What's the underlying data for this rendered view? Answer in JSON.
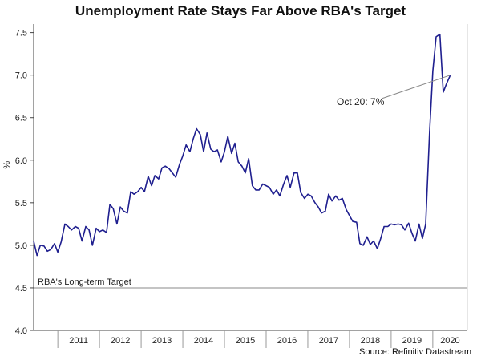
{
  "chart_data": {
    "type": "line",
    "title": "Unemployment Rate Stays Far Above RBA's Target",
    "ylabel": "%",
    "xlabel": "",
    "ylim": [
      4.0,
      7.6
    ],
    "xlim": [
      2010.42,
      2020.83
    ],
    "yticks": [
      "4.0",
      "4.5",
      "5.0",
      "5.5",
      "6.0",
      "6.5",
      "7.0",
      "7.5"
    ],
    "xtick_labels": [
      "2011",
      "2012",
      "2013",
      "2014",
      "2015",
      "2016",
      "2017",
      "2018",
      "2019",
      "2020"
    ],
    "grid": false,
    "source": "Source: Refinitiv Datastream",
    "reference_line": {
      "label": "RBA's Long-term Target",
      "value": 4.5
    },
    "annotation": {
      "text": "Oct 20: 7%",
      "x": 2020.75,
      "y": 7.0
    },
    "series": [
      {
        "color": "#1f1f8f",
        "points": [
          [
            2010.42,
            5.05
          ],
          [
            2010.5,
            4.88
          ],
          [
            2010.58,
            5.0
          ],
          [
            2010.67,
            4.99
          ],
          [
            2010.75,
            4.93
          ],
          [
            2010.83,
            4.95
          ],
          [
            2010.92,
            5.02
          ],
          [
            2011.0,
            4.92
          ],
          [
            2011.08,
            5.04
          ],
          [
            2011.17,
            5.25
          ],
          [
            2011.25,
            5.22
          ],
          [
            2011.33,
            5.18
          ],
          [
            2011.42,
            5.22
          ],
          [
            2011.5,
            5.2
          ],
          [
            2011.58,
            5.05
          ],
          [
            2011.67,
            5.22
          ],
          [
            2011.75,
            5.18
          ],
          [
            2011.83,
            5.0
          ],
          [
            2011.92,
            5.2
          ],
          [
            2012.0,
            5.16
          ],
          [
            2012.08,
            5.18
          ],
          [
            2012.17,
            5.15
          ],
          [
            2012.25,
            5.48
          ],
          [
            2012.33,
            5.43
          ],
          [
            2012.42,
            5.25
          ],
          [
            2012.5,
            5.45
          ],
          [
            2012.58,
            5.4
          ],
          [
            2012.67,
            5.38
          ],
          [
            2012.75,
            5.63
          ],
          [
            2012.83,
            5.6
          ],
          [
            2012.92,
            5.63
          ],
          [
            2013.0,
            5.68
          ],
          [
            2013.08,
            5.63
          ],
          [
            2013.17,
            5.81
          ],
          [
            2013.25,
            5.7
          ],
          [
            2013.33,
            5.82
          ],
          [
            2013.42,
            5.78
          ],
          [
            2013.5,
            5.91
          ],
          [
            2013.58,
            5.93
          ],
          [
            2013.67,
            5.9
          ],
          [
            2013.75,
            5.85
          ],
          [
            2013.83,
            5.8
          ],
          [
            2013.92,
            5.95
          ],
          [
            2014.0,
            6.05
          ],
          [
            2014.08,
            6.18
          ],
          [
            2014.17,
            6.1
          ],
          [
            2014.25,
            6.25
          ],
          [
            2014.33,
            6.37
          ],
          [
            2014.42,
            6.3
          ],
          [
            2014.5,
            6.1
          ],
          [
            2014.58,
            6.32
          ],
          [
            2014.67,
            6.13
          ],
          [
            2014.75,
            6.1
          ],
          [
            2014.83,
            6.12
          ],
          [
            2014.92,
            5.98
          ],
          [
            2015.0,
            6.1
          ],
          [
            2015.08,
            6.28
          ],
          [
            2015.17,
            6.08
          ],
          [
            2015.25,
            6.2
          ],
          [
            2015.33,
            5.98
          ],
          [
            2015.42,
            5.93
          ],
          [
            2015.5,
            5.85
          ],
          [
            2015.58,
            6.02
          ],
          [
            2015.67,
            5.7
          ],
          [
            2015.75,
            5.65
          ],
          [
            2015.83,
            5.65
          ],
          [
            2015.92,
            5.72
          ],
          [
            2016.0,
            5.7
          ],
          [
            2016.08,
            5.68
          ],
          [
            2016.17,
            5.6
          ],
          [
            2016.25,
            5.65
          ],
          [
            2016.33,
            5.58
          ],
          [
            2016.42,
            5.72
          ],
          [
            2016.5,
            5.82
          ],
          [
            2016.58,
            5.68
          ],
          [
            2016.67,
            5.85
          ],
          [
            2016.75,
            5.85
          ],
          [
            2016.83,
            5.62
          ],
          [
            2016.92,
            5.55
          ],
          [
            2017.0,
            5.6
          ],
          [
            2017.08,
            5.58
          ],
          [
            2017.17,
            5.5
          ],
          [
            2017.25,
            5.45
          ],
          [
            2017.33,
            5.38
          ],
          [
            2017.42,
            5.4
          ],
          [
            2017.5,
            5.6
          ],
          [
            2017.58,
            5.52
          ],
          [
            2017.67,
            5.58
          ],
          [
            2017.75,
            5.53
          ],
          [
            2017.83,
            5.55
          ],
          [
            2017.92,
            5.42
          ],
          [
            2018.0,
            5.35
          ],
          [
            2018.08,
            5.28
          ],
          [
            2018.17,
            5.27
          ],
          [
            2018.25,
            5.02
          ],
          [
            2018.33,
            5.0
          ],
          [
            2018.42,
            5.1
          ],
          [
            2018.5,
            5.01
          ],
          [
            2018.58,
            5.05
          ],
          [
            2018.67,
            4.96
          ],
          [
            2018.75,
            5.08
          ],
          [
            2018.83,
            5.22
          ],
          [
            2018.92,
            5.22
          ],
          [
            2019.0,
            5.25
          ],
          [
            2019.08,
            5.24
          ],
          [
            2019.17,
            5.25
          ],
          [
            2019.25,
            5.24
          ],
          [
            2019.33,
            5.18
          ],
          [
            2019.42,
            5.26
          ],
          [
            2019.5,
            5.14
          ],
          [
            2019.58,
            5.05
          ],
          [
            2019.67,
            5.25
          ],
          [
            2019.75,
            5.08
          ],
          [
            2019.83,
            5.25
          ],
          [
            2019.92,
            6.3
          ],
          [
            2020.0,
            7.05
          ],
          [
            2020.08,
            7.45
          ],
          [
            2020.17,
            7.48
          ],
          [
            2020.25,
            6.8
          ],
          [
            2020.33,
            6.9
          ],
          [
            2020.42,
            7.0
          ]
        ]
      }
    ]
  }
}
